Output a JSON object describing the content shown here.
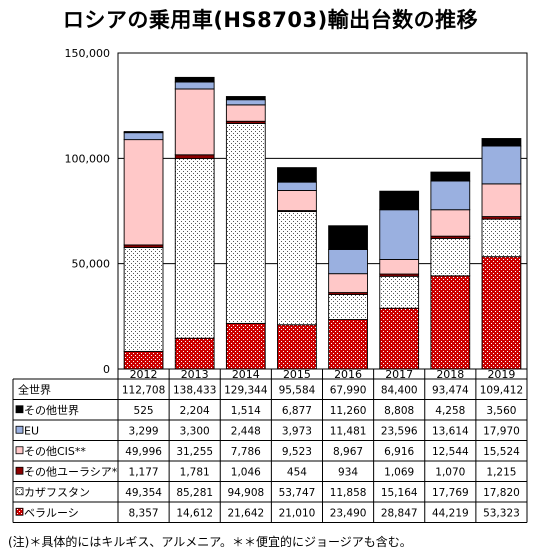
{
  "title": "ロシアの乗用車(HS8703)輸出台数の推移",
  "note": "(注)＊具体的にはキルギス、アルメニア。＊＊便宜的にジョージアも含む。",
  "colors": {
    "belarus": "#cc0000",
    "kazakhstan": "#ffffff",
    "other_eurasia": "#8b0000",
    "other_cis": "#ffc8c8",
    "eu": "#9ab0e0",
    "other_world": "#000000"
  },
  "chart_data": {
    "type": "bar",
    "stacked": true,
    "categories": [
      "2012",
      "2013",
      "2014",
      "2015",
      "2016",
      "2017",
      "2018",
      "2019"
    ],
    "ylim": [
      0,
      150000
    ],
    "yticks": [
      0,
      50000,
      100000,
      150000
    ],
    "ytick_labels": [
      "0",
      "50,000",
      "100,000",
      "150,000"
    ],
    "grid": true,
    "total": {
      "name": "全世界",
      "values": [
        112708,
        138433,
        129344,
        95584,
        67990,
        84400,
        93474,
        109412
      ],
      "labels": [
        "112,708",
        "138,433",
        "129,344",
        "95,584",
        "67,990",
        "84,400",
        "93,474",
        "109,412"
      ]
    },
    "series": [
      {
        "key": "other_world",
        "name": "その他世界",
        "pattern": "solid",
        "values": [
          525,
          2204,
          1514,
          6877,
          11260,
          8808,
          4258,
          3560
        ],
        "labels": [
          "525",
          "2,204",
          "1,514",
          "6,877",
          "11,260",
          "8,808",
          "4,258",
          "3,560"
        ]
      },
      {
        "key": "eu",
        "name": "EU",
        "pattern": "solid",
        "values": [
          3299,
          3300,
          2448,
          3973,
          11481,
          23596,
          13614,
          17970
        ],
        "labels": [
          "3,299",
          "3,300",
          "2,448",
          "3,973",
          "11,481",
          "23,596",
          "13,614",
          "17,970"
        ]
      },
      {
        "key": "other_cis",
        "name": "その他CIS**",
        "pattern": "solid",
        "values": [
          49996,
          31255,
          7786,
          9523,
          8967,
          6916,
          12544,
          15524
        ],
        "labels": [
          "49,996",
          "31,255",
          "7,786",
          "9,523",
          "8,967",
          "6,916",
          "12,544",
          "15,524"
        ]
      },
      {
        "key": "other_eurasia",
        "name": "その他ユーラシア*",
        "pattern": "solid",
        "values": [
          1177,
          1781,
          1046,
          454,
          934,
          1069,
          1070,
          1215
        ],
        "labels": [
          "1,177",
          "1,781",
          "1,046",
          "454",
          "934",
          "1,069",
          "1,070",
          "1,215"
        ]
      },
      {
        "key": "kazakhstan",
        "name": "カザフスタン",
        "pattern": "dots",
        "values": [
          49354,
          85281,
          94908,
          53747,
          11858,
          15164,
          17769,
          17820
        ],
        "labels": [
          "49,354",
          "85,281",
          "94,908",
          "53,747",
          "11,858",
          "15,164",
          "17,769",
          "17,820"
        ]
      },
      {
        "key": "belarus",
        "name": "ベラルーシ",
        "pattern": "dots",
        "values": [
          8357,
          14612,
          21642,
          21010,
          23490,
          28847,
          44219,
          53323
        ],
        "labels": [
          "8,357",
          "14,612",
          "21,642",
          "21,010",
          "23,490",
          "28,847",
          "44,219",
          "53,323"
        ]
      }
    ]
  }
}
